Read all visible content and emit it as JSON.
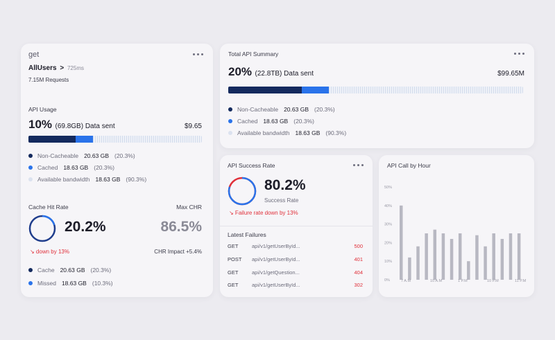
{
  "colors": {
    "dark": "#142a5e",
    "blue": "#2a73ea",
    "light": "#d4dcec",
    "red": "#e0303a",
    "bars": "#b8b8c2"
  },
  "left": {
    "method": "get",
    "route": "AllUsers",
    "route_arrow": ">",
    "latency": "725ms",
    "requests": "7.15M  Requests",
    "usage": {
      "title": "API Usage",
      "percent": "10%",
      "detail": "(69.8GB) Data sent",
      "cost": "$9.65",
      "bar": {
        "dark": 0.27,
        "blue": 0.1
      },
      "legend": [
        {
          "label": "Non-Cacheable",
          "value": "20.63 GB",
          "pct": "(20.3%)"
        },
        {
          "label": "Cached",
          "value": "18.63 GB",
          "pct": "(20.3%)"
        },
        {
          "label": "Available bandwidth",
          "value": "18.63 GB",
          "pct": "(90.3%)"
        }
      ]
    },
    "cache": {
      "title": "Cache Hit Rate",
      "max_label": "Max CHR",
      "value": "20.2%",
      "max_value": "86.5%",
      "fraction": 0.202,
      "trend": "↘ down by 13%",
      "impact": "CHR Impact +5.4%",
      "legend": [
        {
          "label": "Cache",
          "value": "20.63 GB",
          "pct": "(20.3%)"
        },
        {
          "label": "Missed",
          "value": "18.63 GB",
          "pct": "(10.3%)"
        }
      ]
    }
  },
  "summary": {
    "title": "Total API Summary",
    "percent": "20%",
    "detail": "(22.8TB) Data sent",
    "cost": "$99.65M",
    "bar": {
      "dark": 0.25,
      "blue": 0.09
    },
    "legend": [
      {
        "label": "Non-Cacheable",
        "value": "20.63 GB",
        "pct": "(20.3%)"
      },
      {
        "label": "Cached",
        "value": "18.63 GB",
        "pct": "(20.3%)"
      },
      {
        "label": "Available bandwidth",
        "value": "18.63 GB",
        "pct": "(90.3%)"
      }
    ]
  },
  "success": {
    "title": "API Success Rate",
    "value": "80.2%",
    "caption": "Success Rate",
    "fraction": 0.802,
    "trend": "↘ Failure rate down by 13%",
    "failures_title": "Latest Failures",
    "failures": [
      {
        "method": "GET",
        "path": "api/v1/getUserById...",
        "code": "500"
      },
      {
        "method": "POST",
        "path": "api/v1/getUserById...",
        "code": "401"
      },
      {
        "method": "GET",
        "path": "api/v1/getQuestion...",
        "code": "404"
      },
      {
        "method": "GET",
        "path": "api/v1/getUserById...",
        "code": "302"
      }
    ]
  },
  "chart_data": {
    "type": "bar",
    "title": "API Call by Hour",
    "yticks": [
      "50%",
      "40%",
      "30%",
      "20%",
      "10%",
      "0%"
    ],
    "xticks": [
      "7 A.M",
      "10 A.M",
      "1 P.M",
      "10 P.M",
      "11 P.M"
    ],
    "ylim": [
      0,
      50
    ],
    "values": [
      40,
      12,
      18,
      25,
      27,
      25,
      22,
      25,
      10,
      24,
      18,
      25,
      22,
      25,
      25
    ]
  }
}
